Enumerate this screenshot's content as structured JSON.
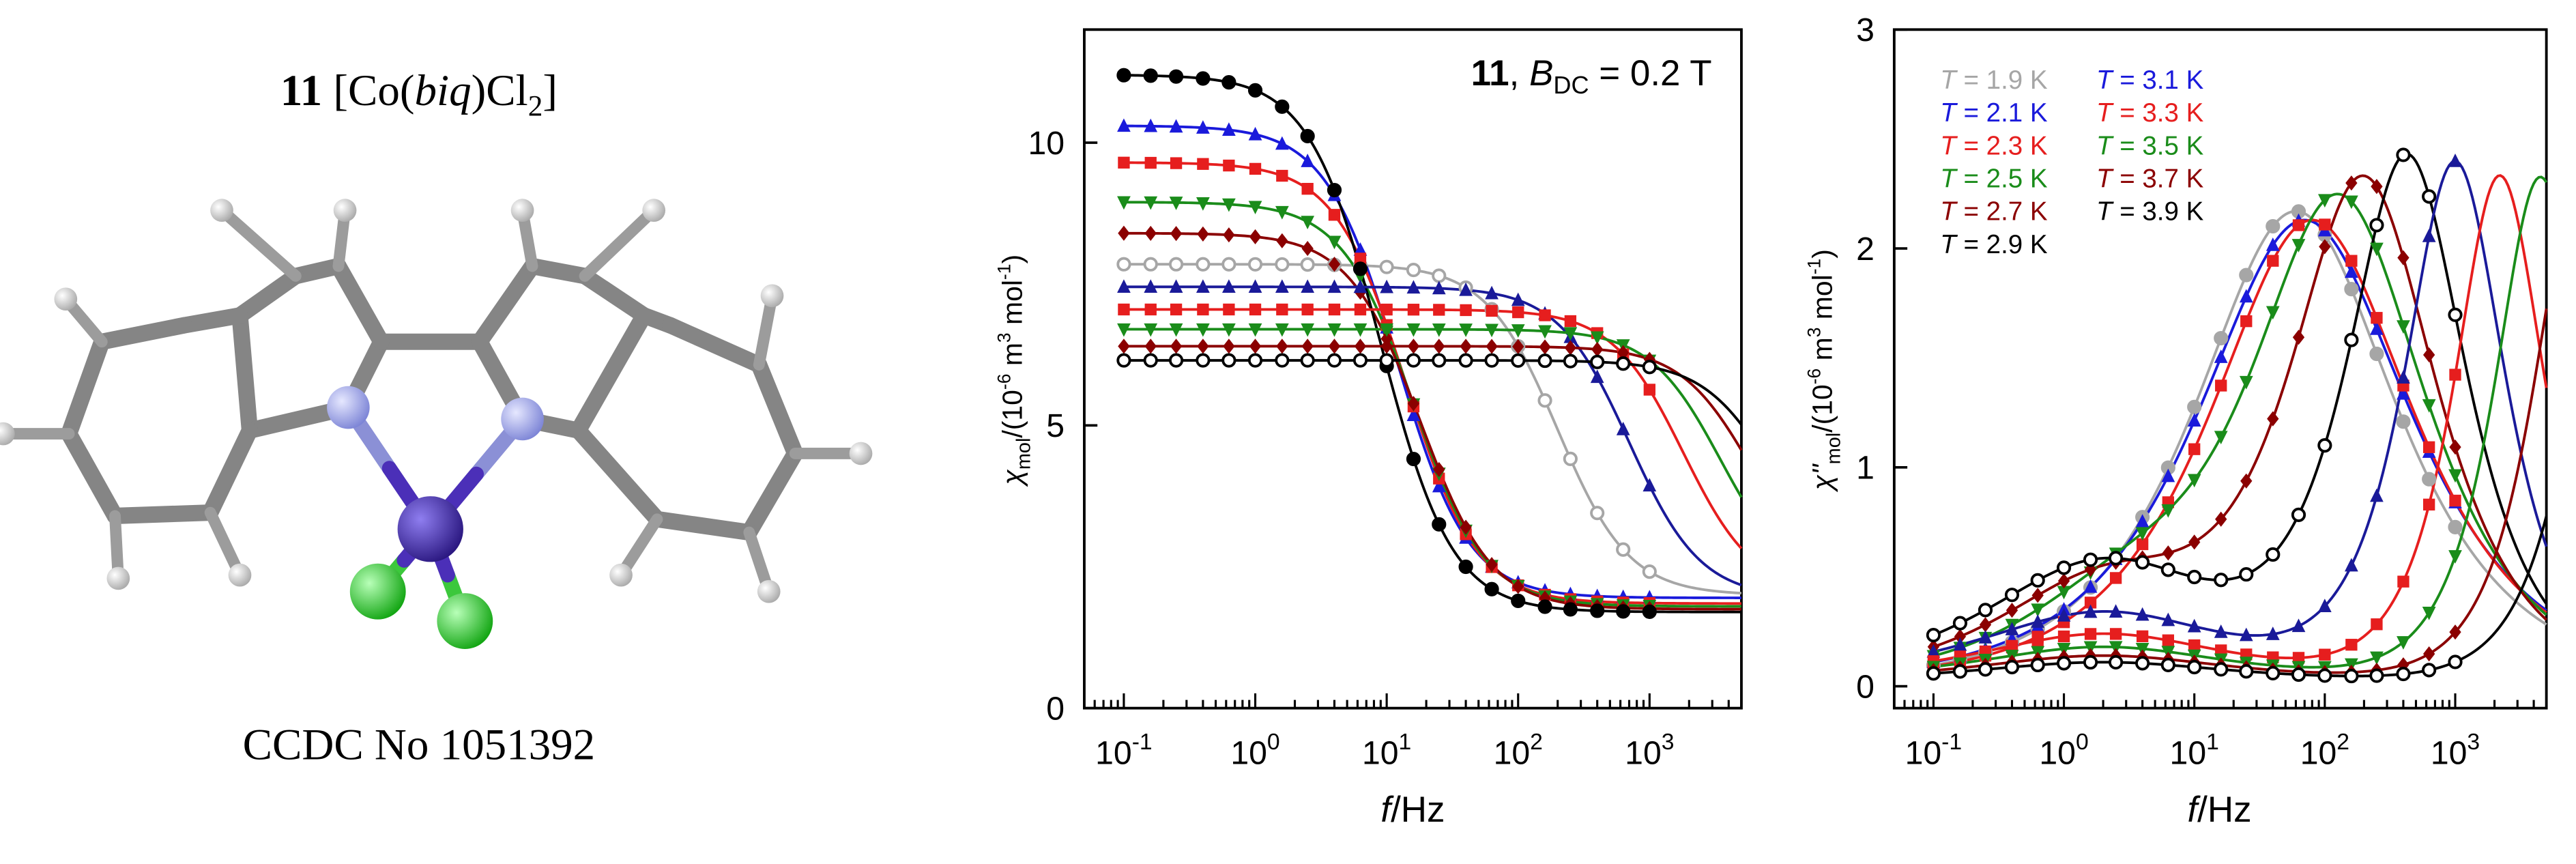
{
  "molecule": {
    "title_number": "11",
    "title_formula_pre": "[Co(",
    "title_ligand": "biq",
    "title_formula_mid": ")Cl",
    "title_formula_sub": "2",
    "title_formula_post": "]",
    "ccdc": "CCDC No 1051392",
    "colors": {
      "carbon": "#8c8c8c",
      "hydrogen": "#d8d8d8",
      "nitrogen": "#aab0ea",
      "cobalt": "#4b2fb8",
      "chlorine": "#2edc2e"
    }
  },
  "chart_data": [
    {
      "type": "line",
      "name": "chi-prime",
      "title_number": "11",
      "title_field": "B",
      "title_field_sub": "DC",
      "title_value": " = 0.2 T",
      "xlabel": "f/Hz",
      "ylabel_symbol": "χ",
      "ylabel_sub": "mol",
      "ylabel_unit_pre": "/(10",
      "ylabel_exp": "-6",
      "ylabel_unit_mid": " m",
      "ylabel_exp2": "3",
      "ylabel_unit_mid2": " mol",
      "ylabel_exp3": "-1",
      "ylabel_unit_post": ")",
      "xscale": "log",
      "xlim": [
        0.05,
        5000
      ],
      "ylim": [
        0,
        12
      ],
      "xticks": [
        0.1,
        1,
        10,
        100,
        1000
      ],
      "xtick_labels": [
        {
          "base": "10",
          "exp": "-1"
        },
        {
          "base": "10",
          "exp": "0"
        },
        {
          "base": "10",
          "exp": "1"
        },
        {
          "base": "10",
          "exp": "2"
        },
        {
          "base": "10",
          "exp": "3"
        }
      ],
      "yticks": [
        0,
        5,
        10
      ],
      "ytick_labels": [
        "0",
        "5",
        "10"
      ],
      "series": [
        {
          "name": "T = 1.9 K",
          "color": "#a6a6a6",
          "marker": "circle-open",
          "chiS": 2.0,
          "chiT": 7.85,
          "f0": 200
        },
        {
          "name": "T = 2.1 K",
          "color": "#1a1adb",
          "marker": "triangle-up",
          "chiS": 1.95,
          "chiT": 10.3,
          "f0": 12
        },
        {
          "name": "T = 2.3 K",
          "color": "#e61e1e",
          "marker": "square",
          "chiS": 1.85,
          "chiT": 9.65,
          "f0": 14
        },
        {
          "name": "T = 2.5 K",
          "color": "#1a8c1a",
          "marker": "triangle-down",
          "chiS": 1.8,
          "chiT": 8.95,
          "f0": 16
        },
        {
          "name": "T = 2.7 K",
          "color": "#8b0000",
          "marker": "diamond",
          "chiS": 1.75,
          "chiT": 8.4,
          "f0": 18
        },
        {
          "name": "T = 2.9 K",
          "color": "#000000",
          "marker": "circle",
          "chiS": 1.7,
          "chiT": 11.2,
          "f0": 9
        },
        {
          "name": "T = 3.1 K",
          "color": "#1a1a99",
          "marker": "triangle-up",
          "chiS": 1.95,
          "chiT": 7.45,
          "f0": 700
        },
        {
          "name": "T = 3.3 K",
          "color": "#e61e1e",
          "marker": "square",
          "chiS": 2.0,
          "chiT": 7.05,
          "f0": 1800
        },
        {
          "name": "T = 3.5 K",
          "color": "#1a8c1a",
          "marker": "triangle-down",
          "chiS": 2.05,
          "chiT": 6.7,
          "f0": 3500
        },
        {
          "name": "T = 3.7 K",
          "color": "#8b0000",
          "marker": "diamond",
          "chiS": 2.1,
          "chiT": 6.4,
          "f0": 6000
        },
        {
          "name": "T = 3.9 K",
          "color": "#000000",
          "marker": "circle-open",
          "chiS": 2.1,
          "chiT": 6.15,
          "f0": 9000
        }
      ]
    },
    {
      "type": "line",
      "name": "chi-double-prime",
      "xlabel": "f/Hz",
      "ylabel_symbol": "χ''",
      "ylabel_sub": "mol",
      "ylabel_unit_pre": "/(10",
      "ylabel_exp": "-6",
      "ylabel_unit_mid": " m",
      "ylabel_exp2": "3",
      "ylabel_unit_mid2": " mol",
      "ylabel_exp3": "-1",
      "ylabel_unit_post": ")",
      "xscale": "log",
      "xlim": [
        0.05,
        5000
      ],
      "ylim": [
        -0.1,
        3.0
      ],
      "xticks": [
        0.1,
        1,
        10,
        100,
        1000
      ],
      "xtick_labels": [
        {
          "base": "10",
          "exp": "-1"
        },
        {
          "base": "10",
          "exp": "0"
        },
        {
          "base": "10",
          "exp": "1"
        },
        {
          "base": "10",
          "exp": "2"
        },
        {
          "base": "10",
          "exp": "3"
        }
      ],
      "yticks": [
        0,
        1,
        2,
        3
      ],
      "ytick_labels": [
        "0",
        "1",
        "2",
        "3"
      ],
      "legend_position": "top-left",
      "legend": [
        {
          "prefix": "T",
          "text": " = 1.9 K",
          "color": "#a6a6a6"
        },
        {
          "prefix": "T",
          "text": " = 2.1 K",
          "color": "#1a1adb"
        },
        {
          "prefix": "T",
          "text": " = 2.3 K",
          "color": "#e61e1e"
        },
        {
          "prefix": "T",
          "text": " = 2.5 K",
          "color": "#1a8c1a"
        },
        {
          "prefix": "T",
          "text": " = 2.7 K",
          "color": "#8b0000"
        },
        {
          "prefix": "T",
          "text": " = 2.9 K",
          "color": "#000000"
        },
        {
          "prefix": "T",
          "text": " = 3.1 K",
          "color": "#1a1adb"
        },
        {
          "prefix": "T",
          "text": " = 3.3 K",
          "color": "#e61e1e"
        },
        {
          "prefix": "T",
          "text": " = 3.5 K",
          "color": "#1a8c1a"
        },
        {
          "prefix": "T",
          "text": " = 3.7 K",
          "color": "#8b0000"
        },
        {
          "prefix": "T",
          "text": " = 3.9 K",
          "color": "#000000"
        }
      ],
      "series": [
        {
          "name": "T = 1.9 K",
          "color": "#a6a6a6",
          "marker": "circle",
          "peaks": [
            {
              "A": 2.15,
              "f": 60,
              "w": 1.1
            }
          ],
          "base": 0.02
        },
        {
          "name": "T = 2.1 K",
          "color": "#1a1adb",
          "marker": "triangle-up",
          "peaks": [
            {
              "A": 2.1,
              "f": 70,
              "w": 1.15
            }
          ],
          "base": 0.03
        },
        {
          "name": "T = 2.3 K",
          "color": "#e61e1e",
          "marker": "square",
          "peaks": [
            {
              "A": 2.1,
              "f": 80,
              "w": 1.1
            }
          ],
          "base": 0.03
        },
        {
          "name": "T = 2.5 K",
          "color": "#1a8c1a",
          "marker": "triangle-down",
          "peaks": [
            {
              "A": 2.15,
              "f": 130,
              "w": 0.95
            },
            {
              "A": 0.35,
              "f": 3,
              "w": 1.2
            }
          ],
          "base": 0.02
        },
        {
          "name": "T = 2.7 K",
          "color": "#8b0000",
          "marker": "diamond",
          "peaks": [
            {
              "A": 2.25,
              "f": 200,
              "w": 0.8
            },
            {
              "A": 0.45,
              "f": 2,
              "w": 1.2
            }
          ],
          "base": 0.02
        },
        {
          "name": "T = 2.9 K",
          "color": "#000000",
          "marker": "circle-open",
          "peaks": [
            {
              "A": 2.35,
              "f": 430,
              "w": 0.65
            },
            {
              "A": 0.55,
              "f": 2,
              "w": 1.3
            }
          ],
          "base": 0.02
        },
        {
          "name": "T = 3.1 K",
          "color": "#1a1a99",
          "marker": "triangle-up",
          "peaks": [
            {
              "A": 2.35,
              "f": 1000,
              "w": 0.55
            },
            {
              "A": 0.32,
              "f": 2,
              "w": 1.4
            }
          ],
          "base": 0.02
        },
        {
          "name": "T = 3.3 K",
          "color": "#e61e1e",
          "marker": "square",
          "peaks": [
            {
              "A": 2.3,
              "f": 2200,
              "w": 0.5
            },
            {
              "A": 0.22,
              "f": 2,
              "w": 1.4
            }
          ],
          "base": 0.02
        },
        {
          "name": "T = 3.5 K",
          "color": "#1a8c1a",
          "marker": "triangle-down",
          "peaks": [
            {
              "A": 2.3,
              "f": 4500,
              "w": 0.5
            },
            {
              "A": 0.16,
              "f": 2,
              "w": 1.4
            }
          ],
          "base": 0.02
        },
        {
          "name": "T = 3.7 K",
          "color": "#8b0000",
          "marker": "diamond",
          "peaks": [
            {
              "A": 2.3,
              "f": 9000,
              "w": 0.5
            },
            {
              "A": 0.12,
              "f": 2,
              "w": 1.4
            }
          ],
          "base": 0.02
        },
        {
          "name": "T = 3.9 K",
          "color": "#000000",
          "marker": "circle-open",
          "peaks": [
            {
              "A": 2.3,
              "f": 18000,
              "w": 0.5
            },
            {
              "A": 0.09,
              "f": 2,
              "w": 1.4
            }
          ],
          "base": 0.02
        }
      ]
    }
  ]
}
